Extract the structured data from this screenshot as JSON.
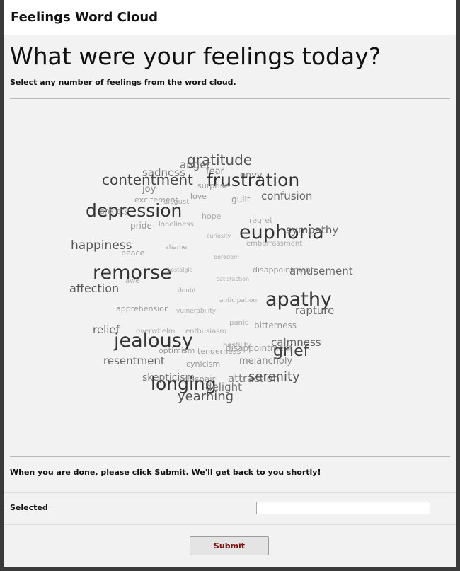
{
  "app": {
    "title": "Feelings Word Cloud"
  },
  "page": {
    "heading": "What were your feelings today?",
    "instructions": "Select any number of feelings from the word cloud.",
    "done_text": "When you are done, please click Submit. We'll get back to you shortly!",
    "selected_label": "Selected",
    "selected_value": "",
    "submit_label": "Submit"
  },
  "word_cloud": [
    "gratitude",
    "anger",
    "sadness",
    "fear",
    "envy",
    "contentment",
    "frustration",
    "joy",
    "surprise",
    "excitement",
    "disgust",
    "love",
    "guilt",
    "confusion",
    "depression",
    "anxiety",
    "pride",
    "loneliness",
    "hope",
    "regret",
    "euphoria",
    "sympathy",
    "embarrassment",
    "happiness",
    "peace",
    "shame",
    "curiosity",
    "boredom",
    "remorse",
    "nostalgia",
    "satisfaction",
    "disappointment",
    "amusement",
    "affection",
    "awe",
    "doubt",
    "apathy",
    "anticipation",
    "apprehension",
    "vulnerability",
    "rapture",
    "panic",
    "bitterness",
    "relief",
    "overwhelm",
    "enthusiasm",
    "jealousy",
    "hostility",
    "calmness",
    "optimism",
    "tenderness",
    "disappointment",
    "grief",
    "resentment",
    "cynicism",
    "melancholy",
    "skepticism",
    "despair",
    "attraction",
    "serenity",
    "longing",
    "delight",
    "yearning"
  ]
}
